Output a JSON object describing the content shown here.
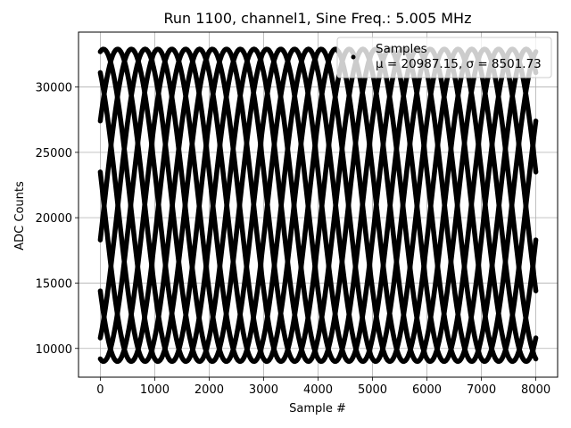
{
  "chart_data": {
    "type": "scatter",
    "title": "Run 1100, channel1, Sine Freq.: 5.005 MHz",
    "xlabel": "Sample #",
    "ylabel": "ADC Counts",
    "xlim": [
      -400,
      8400
    ],
    "ylim": [
      7800,
      34200
    ],
    "xticks": [
      0,
      1000,
      2000,
      3000,
      4000,
      5000,
      6000,
      7000,
      8000
    ],
    "yticks": [
      10000,
      15000,
      20000,
      25000,
      30000
    ],
    "grid": true,
    "legend": {
      "position": "top-right",
      "entries": [
        {
          "label": "Samples",
          "stats": "μ = 20987.15, σ = 8501.73"
        }
      ]
    },
    "series": [
      {
        "name": "Samples",
        "color": "#000000",
        "marker": "dot",
        "model": "sine",
        "amplitude": 11950,
        "offset": 20950,
        "x_range": [
          0,
          8000
        ],
        "curves": [
          {
            "y_at_0": 32700,
            "slope_sign": 1
          },
          {
            "y_at_0": 31100,
            "slope_sign": -1
          },
          {
            "y_at_0": 27400,
            "slope_sign": 1
          },
          {
            "y_at_0": 23500,
            "slope_sign": -1
          },
          {
            "y_at_0": 18300,
            "slope_sign": 1
          },
          {
            "y_at_0": 14400,
            "slope_sign": -1
          },
          {
            "y_at_0": 10800,
            "slope_sign": 1
          },
          {
            "y_at_0": 9200,
            "slope_sign": -1
          }
        ],
        "period": 2000
      }
    ]
  }
}
